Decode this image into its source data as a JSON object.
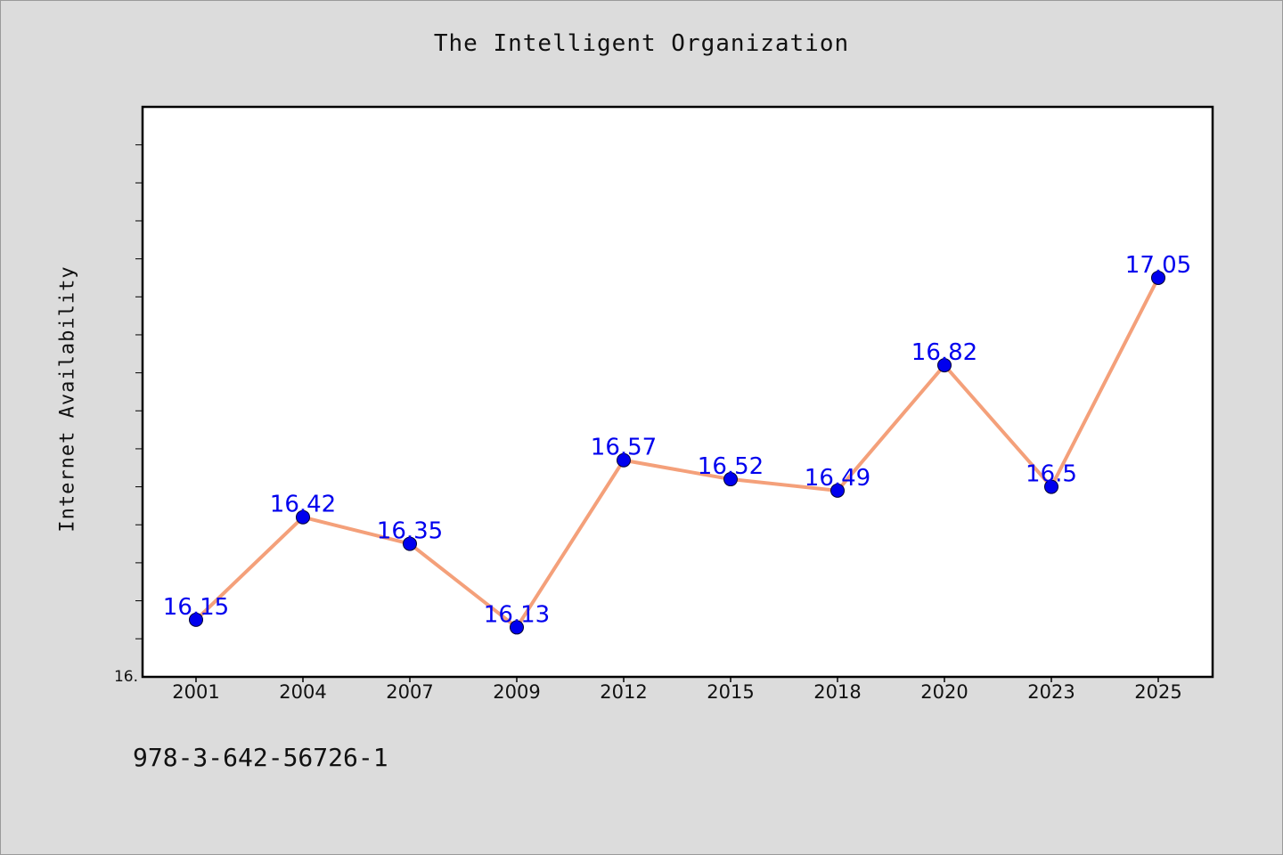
{
  "title": "The Intelligent Organization",
  "footer_text": "978-3-642-56726-1",
  "colors": {
    "background": "#dcdcdc",
    "plot_background": "#ffffff",
    "line": "#f4a07a",
    "marker": "#0000ee",
    "data_label": "#0000ee"
  },
  "chart_data": {
    "type": "line",
    "title": "The Intelligent Organization",
    "xlabel": "",
    "ylabel": "Internet Availability",
    "categories": [
      "2001",
      "2004",
      "2007",
      "2009",
      "2012",
      "2015",
      "2018",
      "2020",
      "2023",
      "2025"
    ],
    "series": [
      {
        "values": [
          16.15,
          16.42,
          16.35,
          16.13,
          16.57,
          16.52,
          16.49,
          16.82,
          16.5,
          17.05
        ],
        "labels": [
          "16.15",
          "16.42",
          "16.35",
          "16.13",
          "16.57",
          "16.52",
          "16.49",
          "16.82",
          "16.5",
          "17.05"
        ]
      }
    ],
    "y_tick_label": "16.",
    "ylim": [
      15.9997,
      17.5
    ],
    "grid": false,
    "legend": "none"
  }
}
